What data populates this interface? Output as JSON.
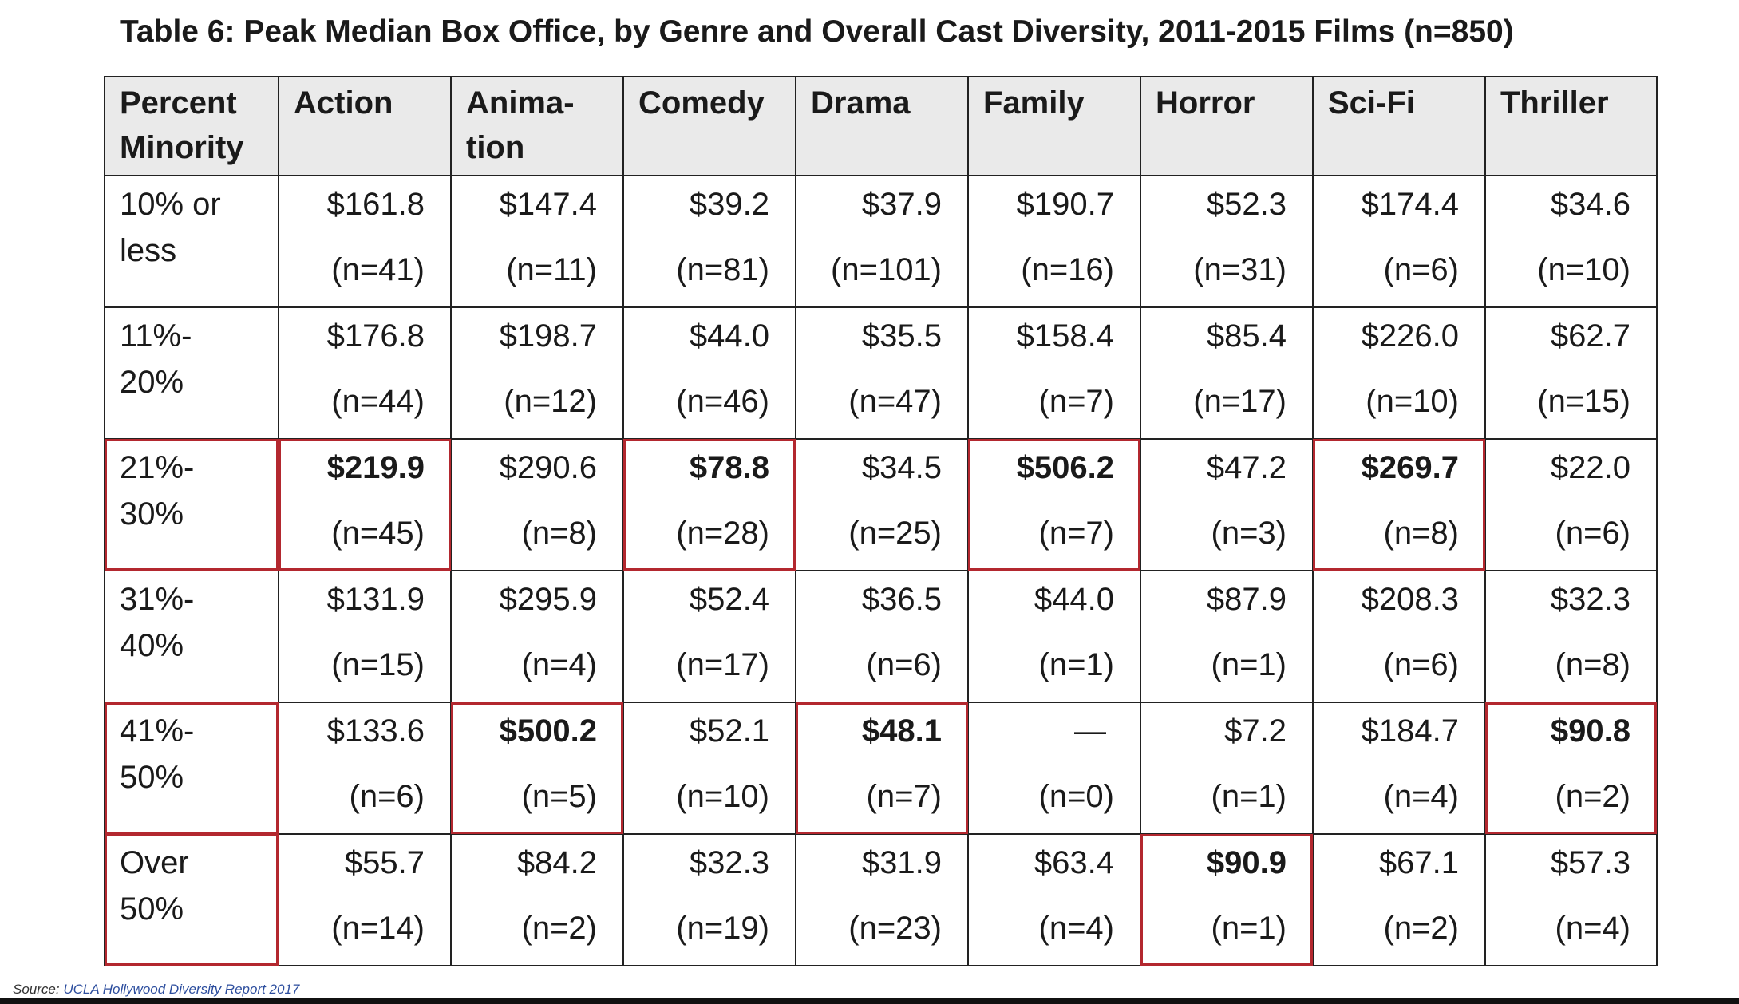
{
  "title": "Table 6:  Peak Median Box Office, by Genre and Overall Cast Diversity, 2011-2015 Films (n=850)",
  "headers": {
    "row_header_line1": "Percent",
    "row_header_line2": "Minority",
    "genres": [
      {
        "line1": "Action",
        "line2": ""
      },
      {
        "line1": "Anima-",
        "line2": "tion"
      },
      {
        "line1": "Comedy",
        "line2": ""
      },
      {
        "line1": "Drama",
        "line2": ""
      },
      {
        "line1": "Family",
        "line2": ""
      },
      {
        "line1": "Horror",
        "line2": ""
      },
      {
        "line1": "Sci-Fi",
        "line2": ""
      },
      {
        "line1": "Thriller",
        "line2": ""
      }
    ]
  },
  "rows": [
    {
      "label_line1": "10% or",
      "label_line2": "less",
      "cells": [
        {
          "value": "$161.8",
          "n": "(n=41)"
        },
        {
          "value": "$147.4",
          "n": "(n=11)"
        },
        {
          "value": "$39.2",
          "n": "(n=81)"
        },
        {
          "value": "$37.9",
          "n": "(n=101)"
        },
        {
          "value": "$190.7",
          "n": "(n=16)"
        },
        {
          "value": "$52.3",
          "n": "(n=31)"
        },
        {
          "value": "$174.4",
          "n": "(n=6)"
        },
        {
          "value": "$34.6",
          "n": "(n=10)"
        }
      ]
    },
    {
      "label_line1": "11%-",
      "label_line2": "20%",
      "cells": [
        {
          "value": "$176.8",
          "n": "(n=44)"
        },
        {
          "value": "$198.7",
          "n": "(n=12)"
        },
        {
          "value": "$44.0",
          "n": "(n=46)"
        },
        {
          "value": "$35.5",
          "n": "(n=47)"
        },
        {
          "value": "$158.4",
          "n": "(n=7)"
        },
        {
          "value": "$85.4",
          "n": "(n=17)"
        },
        {
          "value": "$226.0",
          "n": "(n=10)"
        },
        {
          "value": "$62.7",
          "n": "(n=15)"
        }
      ]
    },
    {
      "label_line1": "21%-",
      "label_line2": "30%",
      "cells": [
        {
          "value": "$219.9",
          "n": "(n=45)"
        },
        {
          "value": "$290.6",
          "n": "(n=8)"
        },
        {
          "value": "$78.8",
          "n": "(n=28)"
        },
        {
          "value": "$34.5",
          "n": "(n=25)"
        },
        {
          "value": "$506.2",
          "n": "(n=7)"
        },
        {
          "value": "$47.2",
          "n": "(n=3)"
        },
        {
          "value": "$269.7",
          "n": "(n=8)"
        },
        {
          "value": "$22.0",
          "n": "(n=6)"
        }
      ]
    },
    {
      "label_line1": "31%-",
      "label_line2": "40%",
      "cells": [
        {
          "value": "$131.9",
          "n": "(n=15)"
        },
        {
          "value": "$295.9",
          "n": "(n=4)"
        },
        {
          "value": "$52.4",
          "n": "(n=17)"
        },
        {
          "value": "$36.5",
          "n": "(n=6)"
        },
        {
          "value": "$44.0",
          "n": "(n=1)"
        },
        {
          "value": "$87.9",
          "n": "(n=1)"
        },
        {
          "value": "$208.3",
          "n": "(n=6)"
        },
        {
          "value": "$32.3",
          "n": "(n=8)"
        }
      ]
    },
    {
      "label_line1": "41%-",
      "label_line2": "50%",
      "cells": [
        {
          "value": "$133.6",
          "n": "(n=6)"
        },
        {
          "value": "$500.2",
          "n": "(n=5)"
        },
        {
          "value": "$52.1",
          "n": "(n=10)"
        },
        {
          "value": "$48.1",
          "n": "(n=7)"
        },
        {
          "value": "—",
          "n": "(n=0)"
        },
        {
          "value": "$7.2",
          "n": "(n=1)"
        },
        {
          "value": "$184.7",
          "n": "(n=4)"
        },
        {
          "value": "$90.8",
          "n": "(n=2)"
        }
      ]
    },
    {
      "label_line1": "Over",
      "label_line2": "50%",
      "cells": [
        {
          "value": "$55.7",
          "n": "(n=14)"
        },
        {
          "value": "$84.2",
          "n": "(n=2)"
        },
        {
          "value": "$32.3",
          "n": "(n=19)"
        },
        {
          "value": "$31.9",
          "n": "(n=23)"
        },
        {
          "value": "$63.4",
          "n": "(n=4)"
        },
        {
          "value": "$90.9",
          "n": "(n=1)"
        },
        {
          "value": "$67.1",
          "n": "(n=2)"
        },
        {
          "value": "$57.3",
          "n": "(n=4)"
        }
      ]
    }
  ],
  "source": {
    "prefix": "Source:",
    "link_text": "UCLA Hollywood Diversity Report 2017"
  },
  "highlight_color": "#b3282f"
}
